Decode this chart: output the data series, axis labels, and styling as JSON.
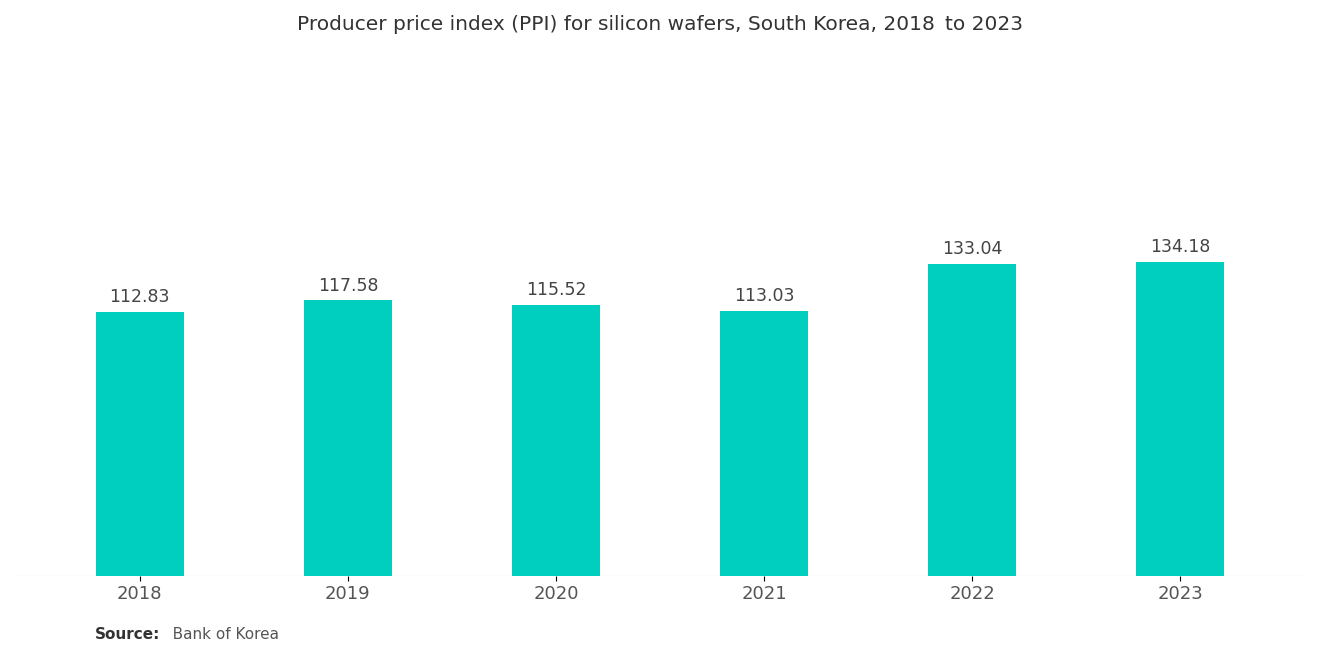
{
  "title": "Producer price index (PPI) for silicon wafers, South Korea, 2018 to 2023",
  "categories": [
    "2018",
    "2019",
    "2020",
    "2021",
    "2022",
    "2023"
  ],
  "values": [
    112.83,
    117.58,
    115.52,
    113.03,
    133.04,
    134.18
  ],
  "bar_color": "#00CFC0",
  "background_color": "#ffffff",
  "title_fontsize": 14.5,
  "label_fontsize": 12.5,
  "tick_fontsize": 13,
  "source_bold": "Source:",
  "source_rest": "   Bank of Korea",
  "ylim": [
    0,
    220
  ],
  "bar_width": 0.42
}
